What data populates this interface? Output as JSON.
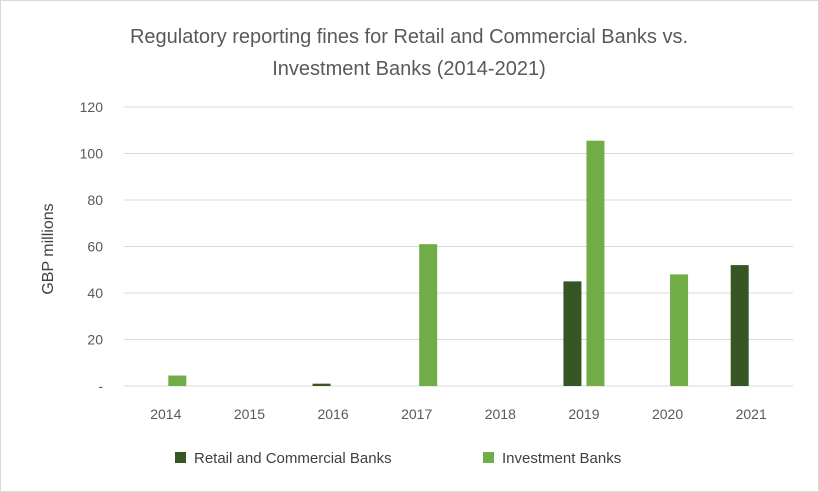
{
  "chart_data": {
    "type": "bar",
    "title_line1": "Regulatory reporting fines for Retail and Commercial Banks vs.",
    "title_line2": "Investment Banks (2014-2021)",
    "xlabel": "",
    "ylabel": "GBP millions",
    "ylim": [
      0,
      120
    ],
    "yticks": [
      0,
      20,
      40,
      60,
      80,
      100,
      120
    ],
    "ytick_labels": [
      "-",
      "20",
      "40",
      "60",
      "80",
      "100",
      "120"
    ],
    "categories": [
      "2014",
      "2015",
      "2016",
      "2017",
      "2018",
      "2019",
      "2020",
      "2021"
    ],
    "series": [
      {
        "name": "Retail and Commercial Banks",
        "color": "#375623",
        "values": [
          0,
          0,
          1,
          0,
          0,
          45,
          0,
          52
        ]
      },
      {
        "name": "Investment Banks",
        "color": "#70ad47",
        "values": [
          4.5,
          0,
          0,
          61,
          0,
          105.5,
          48,
          0
        ]
      }
    ],
    "grid": true,
    "legend_position": "bottom",
    "gridline_color": "#d9d9d9"
  }
}
